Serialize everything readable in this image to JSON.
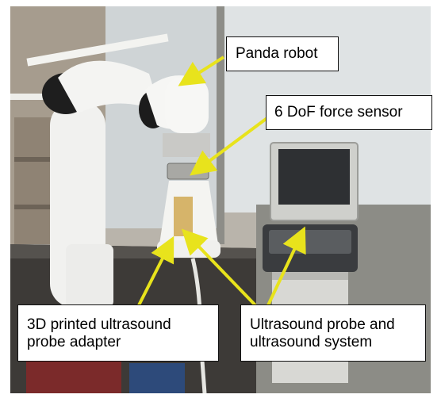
{
  "labels": {
    "panda": "Panda robot",
    "force_sensor": "6 DoF force sensor",
    "adapter_line1": "3D printed ultrasound",
    "adapter_line2": "probe adapter",
    "system_line1": "Ultrasound probe and",
    "system_line2": "ultrasound system"
  },
  "colors": {
    "arrow": "#e8e31c",
    "label_border": "#111111",
    "label_bg": "#ffffff"
  }
}
